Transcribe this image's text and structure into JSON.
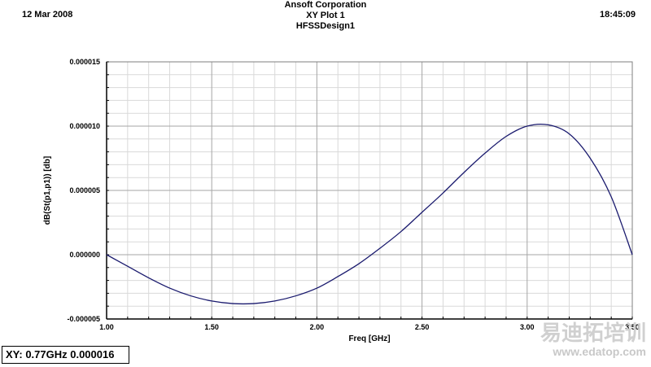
{
  "header": {
    "date": "12 Mar 2008",
    "company": "Ansoft Corporation",
    "plot_name": "XY Plot 1",
    "design_name": "HFSSDesign1",
    "time": "18:45:09"
  },
  "chart_data": {
    "type": "line",
    "title": "XY Plot 1",
    "xlabel": "Freq [GHz]",
    "ylabel": "dB(St(p1,p1)) [db]",
    "xlim": [
      1.0,
      3.5
    ],
    "ylim": [
      -5e-06,
      1.5e-05
    ],
    "x_ticks": [
      1.0,
      1.5,
      2.0,
      2.5,
      3.0,
      3.5
    ],
    "x_tick_labels": [
      "1.00",
      "1.50",
      "2.00",
      "2.50",
      "3.00",
      "3.50"
    ],
    "y_ticks": [
      -5e-06,
      0.0,
      5e-06,
      1e-05,
      1.5e-05
    ],
    "y_tick_labels": [
      "-0.000005",
      "0.000000",
      "0.000005",
      "0.000010",
      "0.000015"
    ],
    "grid": true,
    "series": [
      {
        "color": "#1a1a6e",
        "x": [
          1.0,
          1.1,
          1.2,
          1.3,
          1.4,
          1.5,
          1.6,
          1.7,
          1.8,
          1.9,
          2.0,
          2.1,
          2.2,
          2.3,
          2.4,
          2.5,
          2.6,
          2.7,
          2.8,
          2.9,
          3.0,
          3.1,
          3.2,
          3.3,
          3.4,
          3.5
        ],
        "y": [
          0.0,
          -9e-07,
          -1.8e-06,
          -2.6e-06,
          -3.2e-06,
          -3.6e-06,
          -3.8e-06,
          -3.8e-06,
          -3.6e-06,
          -3.2e-06,
          -2.6e-06,
          -1.7e-06,
          -7e-07,
          5e-07,
          1.8e-06,
          3.3e-06,
          4.8e-06,
          6.4e-06,
          7.9e-06,
          9.2e-06,
          1e-05,
          1.01e-05,
          9.4e-06,
          7.5e-06,
          4.5e-06,
          0.0
        ]
      }
    ]
  },
  "readout": {
    "text": "XY: 0.77GHz 0.000016"
  },
  "watermark": {
    "text_cn": "易迪拓培训",
    "url": "www.edatop.com"
  }
}
